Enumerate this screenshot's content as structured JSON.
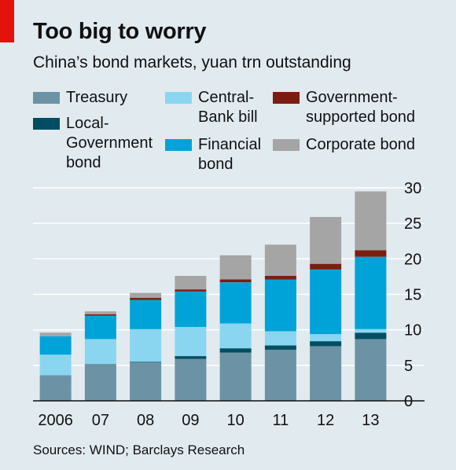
{
  "header": {
    "title": "Too big to worry",
    "subtitle": "China’s bond markets, yuan trn outstanding"
  },
  "source": "Sources: WIND; Barclays Research",
  "colors": {
    "background": "#e1eaef",
    "accent": "#e3120b",
    "gridline": "#ffffff",
    "baseline": "#111111"
  },
  "legend": [
    {
      "label": "Treasury",
      "color": "#6b93a5"
    },
    {
      "label": "Local-\nGovernment\nbond",
      "color": "#004e62"
    },
    {
      "label": "Central-\nBank bill",
      "color": "#8ad6f0"
    },
    {
      "label": "Financial\nbond",
      "color": "#00a3d8"
    },
    {
      "label": "Government-\nsupported bond",
      "color": "#7b1e10"
    },
    {
      "label": "Corporate bond",
      "color": "#a5a5a5"
    }
  ],
  "chart_data": {
    "type": "bar",
    "stacked": true,
    "categories": [
      "2006",
      "07",
      "08",
      "09",
      "10",
      "11",
      "12",
      "13"
    ],
    "ylim": [
      0,
      30
    ],
    "yticks": [
      0,
      5,
      10,
      15,
      20,
      25,
      30
    ],
    "y_axis_side": "right",
    "grid": true,
    "series": [
      {
        "name": "Treasury",
        "color": "#6b93a5",
        "values": [
          3.6,
          5.2,
          5.4,
          5.9,
          6.8,
          7.2,
          7.7,
          8.7
        ]
      },
      {
        "name": "Local-Government bond",
        "color": "#004e62",
        "values": [
          0.0,
          0.0,
          0.1,
          0.4,
          0.6,
          0.6,
          0.7,
          0.9
        ]
      },
      {
        "name": "Central-Bank bill",
        "color": "#8ad6f0",
        "values": [
          2.9,
          3.5,
          4.6,
          4.1,
          3.5,
          2.0,
          1.0,
          0.5
        ]
      },
      {
        "name": "Financial bond",
        "color": "#00a3d8",
        "values": [
          2.6,
          3.3,
          4.1,
          5.0,
          5.8,
          7.3,
          9.1,
          10.2
        ]
      },
      {
        "name": "Government-supported bond",
        "color": "#7b1e10",
        "values": [
          0.0,
          0.2,
          0.3,
          0.3,
          0.4,
          0.5,
          0.8,
          0.9
        ]
      },
      {
        "name": "Corporate bond",
        "color": "#a5a5a5",
        "values": [
          0.5,
          0.4,
          0.7,
          1.9,
          3.4,
          4.4,
          6.6,
          8.3
        ]
      }
    ]
  }
}
